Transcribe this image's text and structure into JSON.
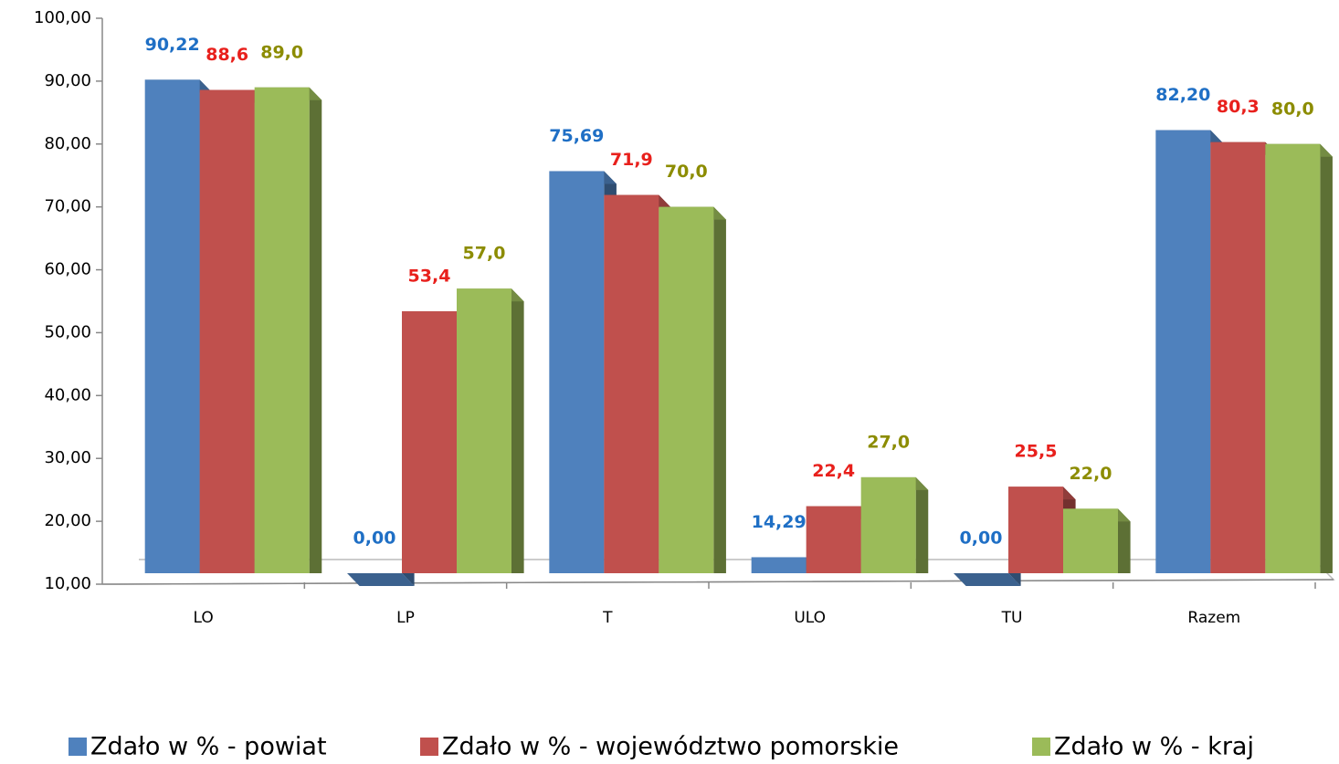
{
  "chart_data": {
    "type": "bar3d",
    "categories": [
      "LO",
      "LP",
      "T",
      "ULO",
      "TU",
      "Razem"
    ],
    "series": [
      {
        "name": "Zdało w % - powiat",
        "color": "#4f81bd",
        "label_color": "#1f6fc5",
        "values": [
          90.22,
          0,
          75.69,
          14.29,
          0,
          82.2
        ],
        "value_labels": [
          "90,22",
          "0,00",
          "75,69",
          "14,29",
          "0,00",
          "82,20"
        ]
      },
      {
        "name": "Zdało w % - województwo pomorskie",
        "color": "#c0504d",
        "label_color": "#e8201c",
        "values": [
          88.6,
          53.4,
          71.9,
          22.4,
          25.5,
          80.3
        ],
        "value_labels": [
          "88,6",
          "53,4",
          "71,9",
          "22,4",
          "25,5",
          "80,3"
        ]
      },
      {
        "name": "Zdało w % - kraj",
        "color": "#9bbb59",
        "label_color": "#8c8c00",
        "values": [
          89.0,
          57.0,
          70.0,
          27.0,
          22.0,
          80.0
        ],
        "value_labels": [
          "89,0",
          "57,0",
          "70,0",
          "27,0",
          "22,0",
          "80,0"
        ]
      }
    ],
    "ylim": [
      10,
      100
    ],
    "yticks": [
      {
        "value": 10,
        "label": "10,00"
      },
      {
        "value": 20,
        "label": "20,00"
      },
      {
        "value": 30,
        "label": "30,00"
      },
      {
        "value": 40,
        "label": "40,00"
      },
      {
        "value": 50,
        "label": "50,00"
      },
      {
        "value": 60,
        "label": "60,00"
      },
      {
        "value": 70,
        "label": "70,00"
      },
      {
        "value": 80,
        "label": "80,00"
      },
      {
        "value": 90,
        "label": "90,00"
      },
      {
        "value": 100,
        "label": "100,00"
      }
    ]
  }
}
